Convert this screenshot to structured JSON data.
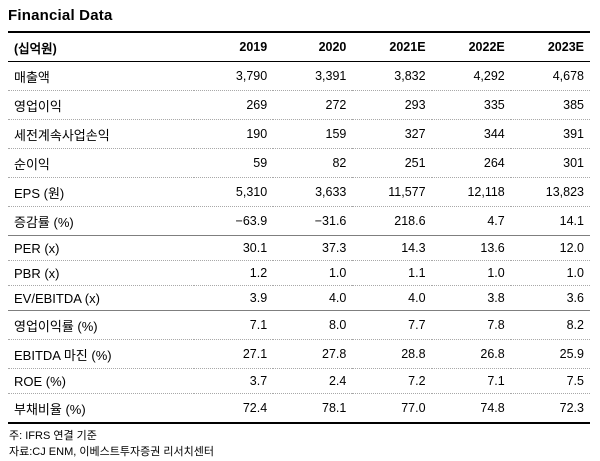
{
  "page": {
    "title": "Financial Data"
  },
  "table": {
    "unit_header": "(십억원)",
    "columns": [
      "2019",
      "2020",
      "2021E",
      "2022E",
      "2023E"
    ],
    "rows": [
      {
        "label": "매출액",
        "values": [
          "3,790",
          "3,391",
          "3,832",
          "4,292",
          "4,678"
        ]
      },
      {
        "label": "영업이익",
        "values": [
          "269",
          "272",
          "293",
          "335",
          "385"
        ]
      },
      {
        "label": "세전계속사업손익",
        "values": [
          "190",
          "159",
          "327",
          "344",
          "391"
        ]
      },
      {
        "label": "순이익",
        "values": [
          "59",
          "82",
          "251",
          "264",
          "301"
        ]
      },
      {
        "label": "EPS (원)",
        "values": [
          "5,310",
          "3,633",
          "11,577",
          "12,118",
          "13,823"
        ]
      },
      {
        "label": "증감률 (%)",
        "values": [
          "−63.9",
          "−31.6",
          "218.6",
          "4.7",
          "14.1"
        ]
      },
      {
        "label": "PER (x)",
        "values": [
          "30.1",
          "37.3",
          "14.3",
          "13.6",
          "12.0"
        ]
      },
      {
        "label": "PBR (x)",
        "values": [
          "1.2",
          "1.0",
          "1.1",
          "1.0",
          "1.0"
        ]
      },
      {
        "label": "EV/EBITDA (x)",
        "values": [
          "3.9",
          "4.0",
          "4.0",
          "3.8",
          "3.6"
        ]
      },
      {
        "label": "영업이익률 (%)",
        "values": [
          "7.1",
          "8.0",
          "7.7",
          "7.8",
          "8.2"
        ]
      },
      {
        "label": "EBITDA 마진 (%)",
        "values": [
          "27.1",
          "27.8",
          "28.8",
          "26.8",
          "25.9"
        ]
      },
      {
        "label": "ROE (%)",
        "values": [
          "3.7",
          "2.4",
          "7.2",
          "7.1",
          "7.5"
        ]
      },
      {
        "label": "부채비율 (%)",
        "values": [
          "72.4",
          "78.1",
          "77.0",
          "74.8",
          "72.3"
        ]
      }
    ]
  },
  "footnotes": [
    "주: IFRS 연결 기준",
    "자료:CJ ENM, 이베스트투자증권 리서치센터"
  ]
}
